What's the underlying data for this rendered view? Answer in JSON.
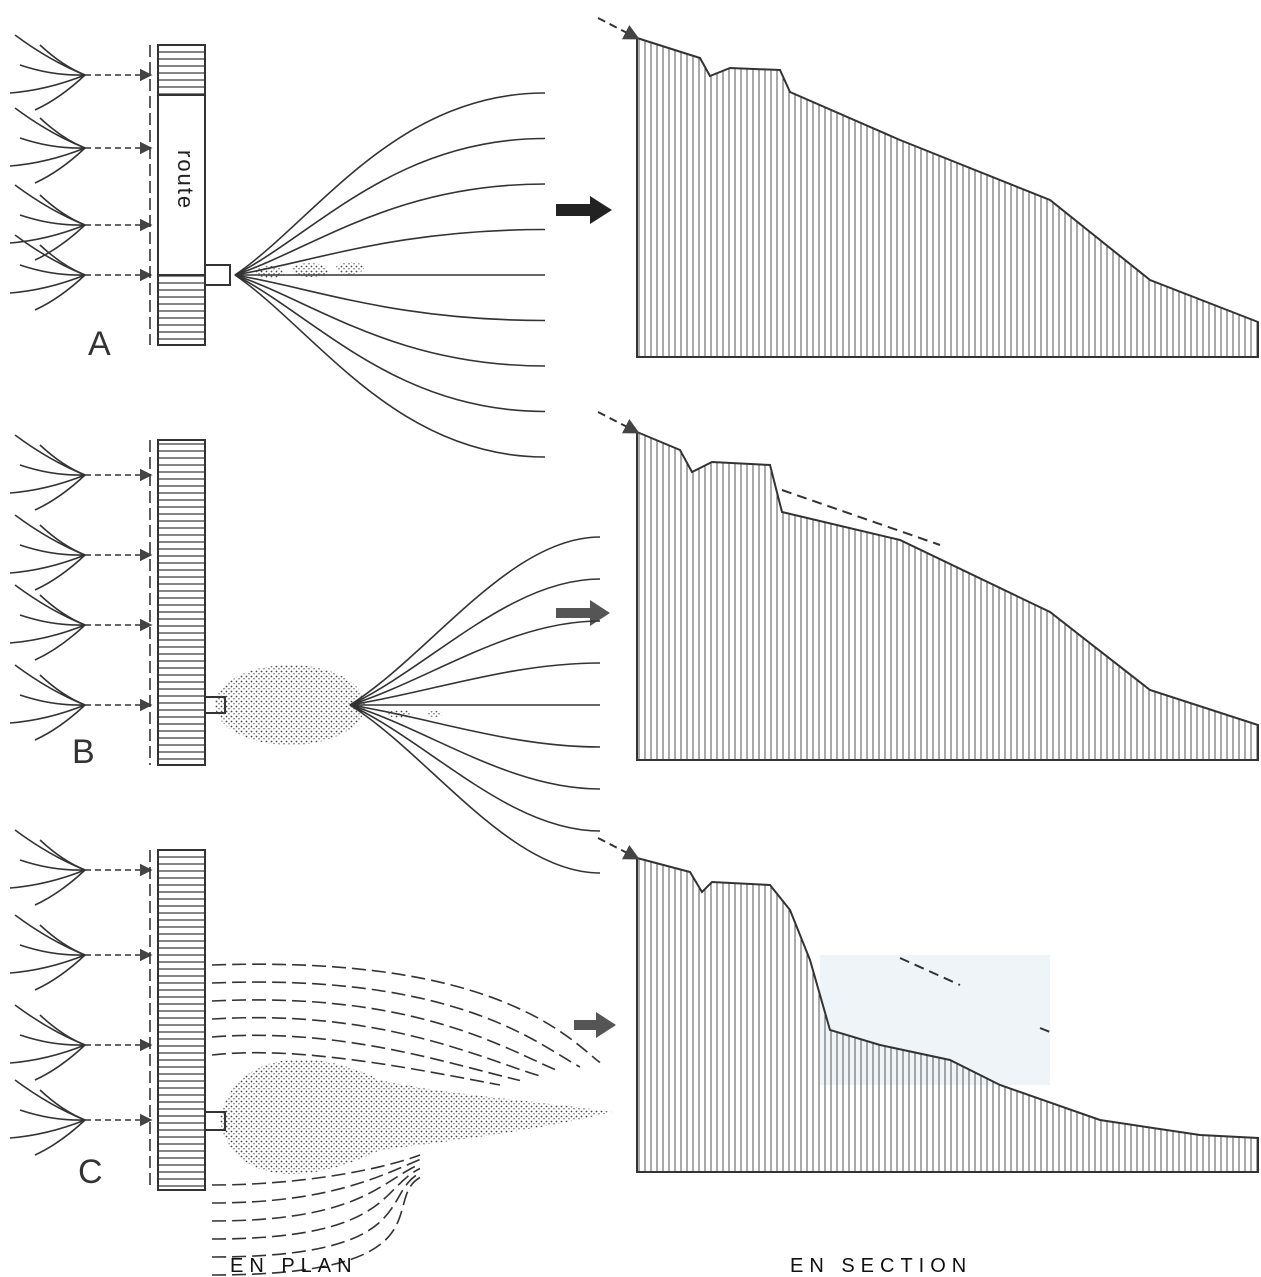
{
  "panels": [
    {
      "label": "A",
      "road_label": "route"
    },
    {
      "label": "B"
    },
    {
      "label": "C"
    }
  ],
  "captions": {
    "plan": "EN PLAN",
    "section": "EN SECTION"
  }
}
